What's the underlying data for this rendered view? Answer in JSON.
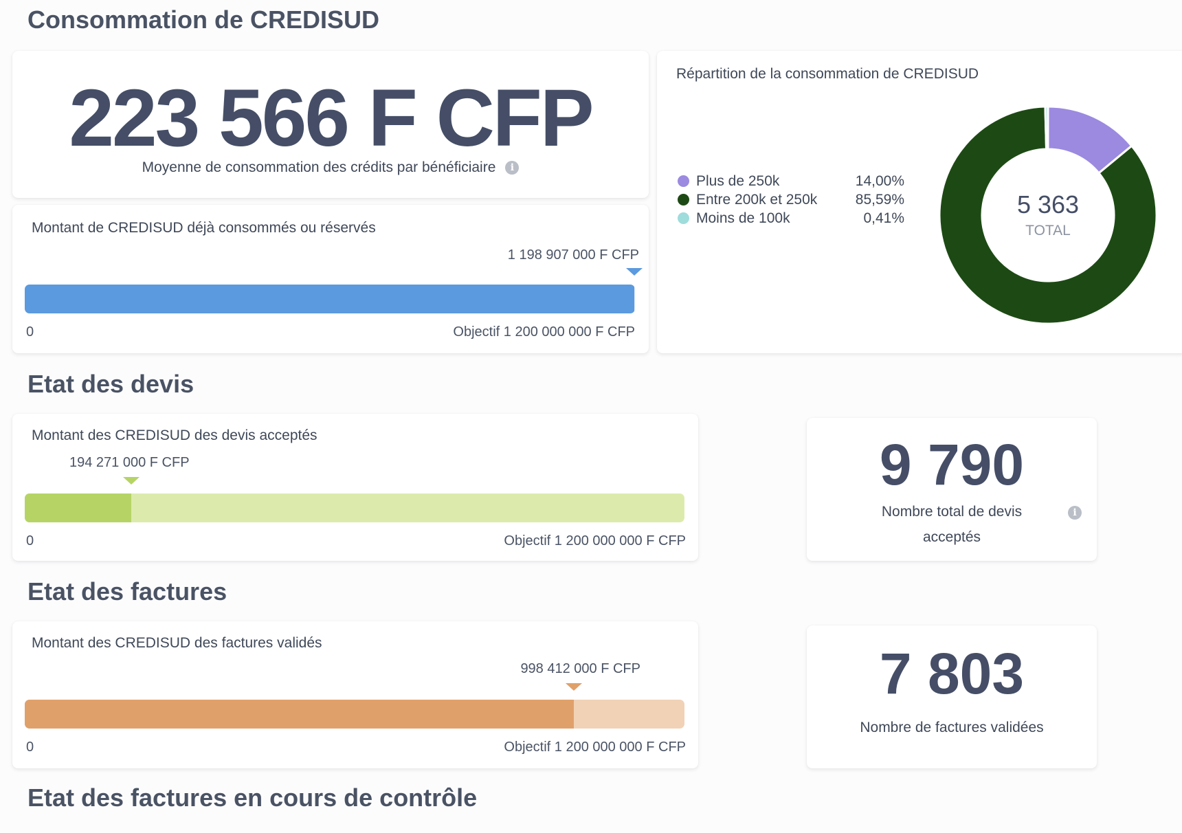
{
  "sections": {
    "consommation": "Consommation de CREDISUD",
    "devis": "Etat des devis",
    "factures": "Etat des factures",
    "controle": "Etat des factures en cours de contrôle"
  },
  "average": {
    "value": "223 566 F  CFP",
    "label": "Moyenne de consommation des crédits par bénéficiaire",
    "info_icon": "info-icon"
  },
  "consumed_bar": {
    "title": "Montant de CREDISUD déjà consommés ou réservés",
    "marker_label": "1 198 907 000 F CFP",
    "fraction": 0.99909,
    "start_label": "0",
    "end_label": "Objectif 1 200 000 000 F CFP",
    "color": "#5b9ade"
  },
  "donut": {
    "title": "Répartition de la consommation de CREDISUD",
    "center_value": "5 363",
    "center_label": "TOTAL"
  },
  "chart_data": {
    "type": "pie",
    "title": "Répartition de la consommation de CREDISUD",
    "total": 5363,
    "series": [
      {
        "name": "Plus de 250k",
        "value": 14.0,
        "label": "14,00%",
        "color": "#9b8ae0"
      },
      {
        "name": "Entre 200k et 250k",
        "value": 85.59,
        "label": "85,59%",
        "color": "#1d4a14"
      },
      {
        "name": "Moins de 100k",
        "value": 0.41,
        "label": "0,41%",
        "color": "#9fdcdc"
      }
    ],
    "legend_position": "left"
  },
  "devis_bar": {
    "title": "Montant des CREDISUD des devis acceptés",
    "marker_label": "194 271 000 F CFP",
    "fraction": 0.16189,
    "start_label": "0",
    "end_label": "Objectif 1 200 000 000 F CFP",
    "color": "#b6d466",
    "track_color": "#dcebac",
    "marker_color": "#b6d466"
  },
  "devis_count": {
    "value": "9 790",
    "label_line1": "Nombre total de devis",
    "label_line2": "acceptés",
    "info_icon": "info-icon"
  },
  "factures_bar": {
    "title": "Montant des CREDISUD des factures validés",
    "marker_label": "998 412 000 F CFP",
    "fraction": 0.83201,
    "start_label": "0",
    "end_label": "Objectif 1 200 000 000 F CFP",
    "color": "#e0a06a",
    "track_color": "#f1d2b6",
    "marker_color": "#e0a06a"
  },
  "factures_count": {
    "value": "7 803",
    "label": "Nombre de factures validées"
  }
}
